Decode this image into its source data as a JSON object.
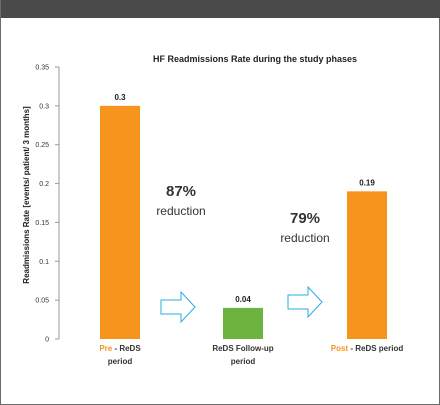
{
  "chart_data": {
    "type": "bar",
    "title": "HF Readmissions Rate during the study phases",
    "ylabel": "Readmissions Rate  [events/ patient/ 3 months]",
    "ylim": [
      0,
      0.35
    ],
    "yticks": [
      "0",
      "0.05",
      "0.1",
      "0.15",
      "0.2",
      "0.25",
      "0.3",
      "0.35"
    ],
    "categories": [
      {
        "prefix": "Pre",
        "line1": " - ReDS",
        "line2": "period"
      },
      {
        "prefix": "",
        "line1": "ReDS Follow-up",
        "line2": "period"
      },
      {
        "prefix": "Post",
        "line1": " - ReDS period",
        "line2": ""
      }
    ],
    "values": [
      0.3,
      0.04,
      0.19
    ],
    "data_labels": [
      "0.3",
      "0.04",
      "0.19"
    ],
    "bar_colors": [
      "#F7941D",
      "#6DB33F",
      "#F7941D"
    ],
    "prefix_color": "#F7941D",
    "annotations": [
      {
        "percent": "87%",
        "text": "reduction"
      },
      {
        "percent": "79%",
        "text": "reduction"
      }
    ],
    "arrow_color": "#29ABE2"
  }
}
